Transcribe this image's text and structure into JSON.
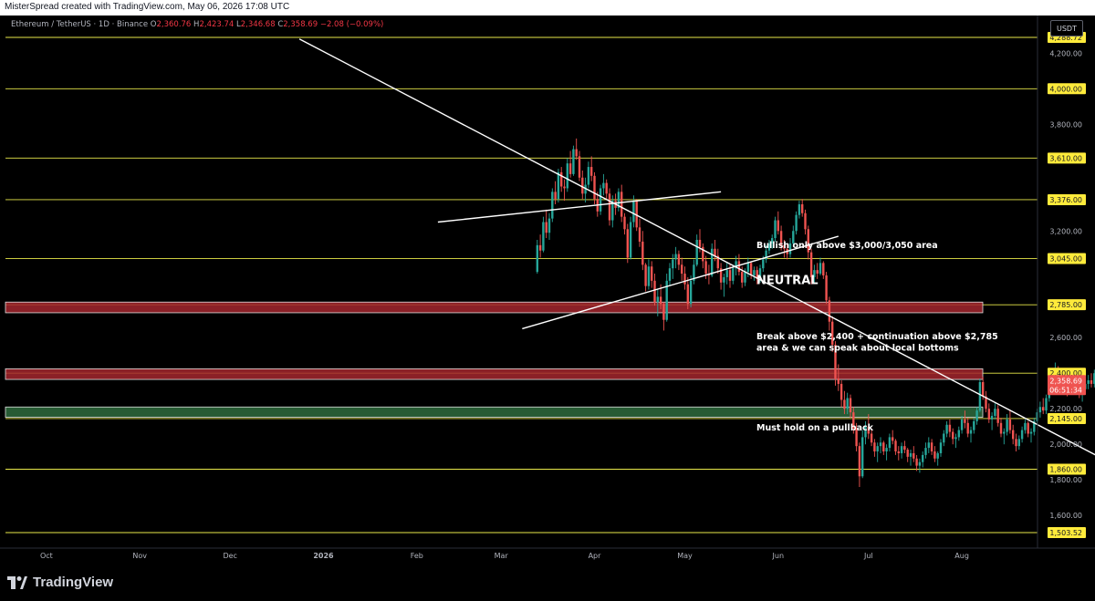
{
  "header": {
    "attribution": "MisterSpread created with TradingView.com, May 06, 2026 17:08 UTC"
  },
  "legend": {
    "symbol": "Ethereum / TetherUS · 1D · Binance",
    "open_label": "O",
    "open": "2,360.76",
    "high_label": "H",
    "high": "2,423.74",
    "low_label": "L",
    "low": "2,346.68",
    "close_label": "C",
    "close": "2,358.69",
    "change": "−2.08 (−0.09%)"
  },
  "currency_button": "USDT",
  "footer": {
    "brand": "TradingView"
  },
  "colors": {
    "background": "#000000",
    "level_line": "#e8e84a",
    "up_candle": "#26a69a",
    "down_candle": "#ef5350",
    "resistance_zone": "#a3262e",
    "support_zone": "#2e6b3d",
    "trendline": "#ffffff",
    "label_bg": "#ffeb3b",
    "current_price_bg": "#ef5350"
  },
  "chart_data": {
    "type": "candlestick",
    "symbol": "ETHUSDT",
    "timeframe": "1D",
    "y_range": [
      1470,
      4310
    ],
    "x_tick_labels": [
      "Oct",
      "Nov",
      "Dec",
      "2026",
      "Feb",
      "Mar",
      "Apr",
      "May",
      "Jun",
      "Jul",
      "Aug"
    ],
    "y_tick_labels": [
      "4,200.00",
      "3,800.00",
      "3,200.00",
      "2,600.00",
      "2,200.00",
      "2,000.00",
      "1,800.00",
      "1,600.00"
    ],
    "y_tick_values": [
      4200,
      3800,
      3200,
      2600,
      2200,
      2000,
      1800,
      1600
    ],
    "levels": [
      {
        "value": 4288.72,
        "label": "4,288.72"
      },
      {
        "value": 4000,
        "label": "4,000.00"
      },
      {
        "value": 3610,
        "label": "3,610.00"
      },
      {
        "value": 3376,
        "label": "3,376.00"
      },
      {
        "value": 3045,
        "label": "3,045.00"
      },
      {
        "value": 2785,
        "label": "2,785.00"
      },
      {
        "value": 2400,
        "label": "2,400.00"
      },
      {
        "value": 2145,
        "label": "2,145.00"
      },
      {
        "value": 1860,
        "label": "1,860.00"
      },
      {
        "value": 1503.52,
        "label": "1,503.52"
      }
    ],
    "current_price": {
      "value": 2358.69,
      "label": "2,358.69",
      "countdown": "06:51:34"
    },
    "zones": [
      {
        "name": "resistance-zone-2785",
        "low": 2740,
        "high": 2800,
        "kind": "resistance"
      },
      {
        "name": "resistance-zone-2400",
        "low": 2365,
        "high": 2425,
        "kind": "resistance"
      },
      {
        "name": "support-zone-2145",
        "low": 2152,
        "high": 2210,
        "kind": "support"
      }
    ],
    "annotations": [
      {
        "text": "Bullish only above $3,000/3,050 area",
        "price": 3105
      },
      {
        "text": "NEUTRAL",
        "price": 2900
      },
      {
        "text": "Break above $2,400 + continuation above $2,785",
        "price": 2590
      },
      {
        "text": "area & we can speak about local bottoms",
        "price": 2528
      },
      {
        "text": "Must hold on a pullback",
        "price": 2078
      }
    ],
    "trendlines": [
      {
        "name": "main-downtrend-line",
        "from": {
          "day": 97,
          "price": 4280
        },
        "to": {
          "day": 371,
          "price": 1855
        }
      },
      {
        "name": "wedge-upper-line",
        "from": {
          "day": 143,
          "price": 3250
        },
        "to": {
          "day": 237,
          "price": 3420
        }
      },
      {
        "name": "wedge-lower-line",
        "from": {
          "day": 171,
          "price": 2650
        },
        "to": {
          "day": 276,
          "price": 3170
        }
      }
    ],
    "candles": [
      [
        2970,
        3150,
        2960,
        3120
      ],
      [
        3120,
        3180,
        3050,
        3090
      ],
      [
        3090,
        3280,
        3080,
        3250
      ],
      [
        3250,
        3320,
        3160,
        3190
      ],
      [
        3190,
        3300,
        3150,
        3270
      ],
      [
        3270,
        3440,
        3250,
        3420
      ],
      [
        3420,
        3480,
        3350,
        3380
      ],
      [
        3380,
        3550,
        3360,
        3530
      ],
      [
        3530,
        3560,
        3420,
        3450
      ],
      [
        3450,
        3490,
        3370,
        3440
      ],
      [
        3440,
        3610,
        3420,
        3580
      ],
      [
        3580,
        3650,
        3500,
        3520
      ],
      [
        3520,
        3680,
        3510,
        3660
      ],
      [
        3660,
        3720,
        3600,
        3620
      ],
      [
        3620,
        3650,
        3480,
        3500
      ],
      [
        3500,
        3540,
        3380,
        3410
      ],
      [
        3410,
        3500,
        3360,
        3460
      ],
      [
        3460,
        3590,
        3440,
        3560
      ],
      [
        3560,
        3620,
        3480,
        3510
      ],
      [
        3510,
        3530,
        3350,
        3380
      ],
      [
        3380,
        3420,
        3280,
        3310
      ],
      [
        3310,
        3460,
        3290,
        3440
      ],
      [
        3440,
        3520,
        3400,
        3470
      ],
      [
        3470,
        3490,
        3380,
        3410
      ],
      [
        3410,
        3440,
        3230,
        3260
      ],
      [
        3260,
        3400,
        3220,
        3370
      ],
      [
        3370,
        3410,
        3290,
        3330
      ],
      [
        3330,
        3440,
        3310,
        3420
      ],
      [
        3420,
        3460,
        3250,
        3280
      ],
      [
        3280,
        3300,
        3180,
        3210
      ],
      [
        3210,
        3240,
        3020,
        3050
      ],
      [
        3050,
        3280,
        3040,
        3250
      ],
      [
        3250,
        3400,
        3220,
        3370
      ],
      [
        3370,
        3380,
        3200,
        3220
      ],
      [
        3220,
        3270,
        3110,
        3140
      ],
      [
        3140,
        3200,
        2980,
        3010
      ],
      [
        3010,
        3020,
        2860,
        2890
      ],
      [
        2890,
        3040,
        2870,
        3000
      ],
      [
        3000,
        3030,
        2880,
        2920
      ],
      [
        2920,
        2960,
        2780,
        2800
      ],
      [
        2800,
        2870,
        2720,
        2830
      ],
      [
        2830,
        2900,
        2760,
        2790
      ],
      [
        2790,
        2800,
        2640,
        2700
      ],
      [
        2700,
        2960,
        2690,
        2920
      ],
      [
        2920,
        3020,
        2890,
        2990
      ],
      [
        2990,
        3070,
        2930,
        3040
      ],
      [
        3040,
        3110,
        2990,
        3070
      ],
      [
        3070,
        3090,
        2980,
        3010
      ],
      [
        3010,
        3050,
        2920,
        2960
      ],
      [
        2960,
        3000,
        2870,
        2900
      ],
      [
        2900,
        2940,
        2760,
        2790
      ],
      [
        2790,
        2950,
        2770,
        2920
      ],
      [
        2920,
        3040,
        2900,
        3010
      ],
      [
        3010,
        3180,
        3000,
        3150
      ],
      [
        3150,
        3210,
        3080,
        3110
      ],
      [
        3110,
        3130,
        2990,
        3030
      ],
      [
        3030,
        3060,
        2930,
        2960
      ],
      [
        2960,
        3010,
        2900,
        2950
      ],
      [
        2950,
        3130,
        2940,
        3100
      ],
      [
        3100,
        3150,
        3030,
        3060
      ],
      [
        3060,
        3100,
        2960,
        2990
      ],
      [
        2990,
        3020,
        2870,
        2910
      ],
      [
        2910,
        2960,
        2830,
        2940
      ],
      [
        2940,
        3020,
        2900,
        2980
      ],
      [
        2980,
        3010,
        2880,
        2920
      ],
      [
        2920,
        3010,
        2900,
        2990
      ],
      [
        2990,
        3060,
        2950,
        3030
      ],
      [
        3030,
        3070,
        2950,
        2970
      ],
      [
        2970,
        3000,
        2880,
        2910
      ],
      [
        2910,
        2990,
        2890,
        2970
      ],
      [
        2970,
        3050,
        2940,
        3020
      ],
      [
        3020,
        3030,
        2930,
        2950
      ],
      [
        2950,
        3000,
        2920,
        2980
      ],
      [
        2980,
        3000,
        2900,
        2930
      ],
      [
        2930,
        3010,
        2910,
        2990
      ],
      [
        2990,
        3060,
        2970,
        3040
      ],
      [
        3040,
        3120,
        3020,
        3090
      ],
      [
        3090,
        3150,
        3070,
        3130
      ],
      [
        3130,
        3180,
        3100,
        3160
      ],
      [
        3160,
        3280,
        3140,
        3260
      ],
      [
        3260,
        3310,
        3180,
        3200
      ],
      [
        3200,
        3230,
        3090,
        3120
      ],
      [
        3120,
        3150,
        3050,
        3100
      ],
      [
        3100,
        3130,
        3040,
        3070
      ],
      [
        3070,
        3160,
        3050,
        3130
      ],
      [
        3130,
        3230,
        3110,
        3200
      ],
      [
        3200,
        3310,
        3180,
        3290
      ],
      [
        3290,
        3370,
        3270,
        3350
      ],
      [
        3350,
        3380,
        3280,
        3300
      ],
      [
        3300,
        3320,
        3180,
        3210
      ],
      [
        3210,
        3230,
        3040,
        3080
      ],
      [
        3080,
        3100,
        2900,
        2940
      ],
      [
        2940,
        3010,
        2910,
        2980
      ],
      [
        2980,
        3020,
        2930,
        2960
      ],
      [
        2960,
        3050,
        2950,
        3020
      ],
      [
        3020,
        3030,
        2930,
        2950
      ],
      [
        2950,
        2970,
        2790,
        2810
      ],
      [
        2810,
        2830,
        2640,
        2690
      ],
      [
        2690,
        2720,
        2520,
        2560
      ],
      [
        2560,
        2580,
        2330,
        2370
      ],
      [
        2370,
        2450,
        2300,
        2340
      ],
      [
        2340,
        2360,
        2210,
        2250
      ],
      [
        2250,
        2300,
        2170,
        2200
      ],
      [
        2200,
        2290,
        2170,
        2260
      ],
      [
        2260,
        2280,
        2150,
        2180
      ],
      [
        2180,
        2210,
        2060,
        2090
      ],
      [
        2090,
        2120,
        1960,
        1990
      ],
      [
        1990,
        2010,
        1760,
        1820
      ],
      [
        1820,
        2080,
        1810,
        2040
      ],
      [
        2040,
        2130,
        2000,
        2100
      ],
      [
        2100,
        2170,
        2030,
        2060
      ],
      [
        2060,
        2090,
        1990,
        2010
      ],
      [
        2010,
        2030,
        1930,
        1960
      ],
      [
        1960,
        2010,
        1900,
        1990
      ],
      [
        1990,
        2040,
        1950,
        2010
      ],
      [
        2010,
        2020,
        1940,
        1960
      ],
      [
        1960,
        2000,
        1910,
        1980
      ],
      [
        1980,
        2060,
        1960,
        2040
      ],
      [
        2040,
        2080,
        2000,
        2020
      ],
      [
        2020,
        2030,
        1940,
        1960
      ],
      [
        1960,
        1990,
        1910,
        1950
      ],
      [
        1950,
        2010,
        1920,
        1990
      ],
      [
        1990,
        2020,
        1950,
        1970
      ],
      [
        1970,
        1980,
        1900,
        1930
      ],
      [
        1930,
        1970,
        1880,
        1950
      ],
      [
        1950,
        1990,
        1900,
        1920
      ],
      [
        1920,
        1940,
        1850,
        1880
      ],
      [
        1880,
        1920,
        1840,
        1900
      ],
      [
        1900,
        1960,
        1870,
        1940
      ],
      [
        1940,
        2010,
        1920,
        1980
      ],
      [
        1980,
        2040,
        1950,
        2010
      ],
      [
        2010,
        2030,
        1940,
        1960
      ],
      [
        1960,
        1990,
        1900,
        1920
      ],
      [
        1920,
        1960,
        1880,
        1950
      ],
      [
        1950,
        2030,
        1930,
        2010
      ],
      [
        2010,
        2080,
        1990,
        2060
      ],
      [
        2060,
        2130,
        2040,
        2110
      ],
      [
        2110,
        2140,
        2040,
        2070
      ],
      [
        2070,
        2090,
        2000,
        2030
      ],
      [
        2030,
        2060,
        1980,
        2040
      ],
      [
        2040,
        2100,
        2020,
        2080
      ],
      [
        2080,
        2160,
        2060,
        2140
      ],
      [
        2140,
        2190,
        2090,
        2120
      ],
      [
        2120,
        2150,
        2040,
        2060
      ],
      [
        2060,
        2100,
        2010,
        2080
      ],
      [
        2080,
        2150,
        2060,
        2130
      ],
      [
        2130,
        2210,
        2110,
        2190
      ],
      [
        2190,
        2370,
        2180,
        2350
      ],
      [
        2350,
        2380,
        2250,
        2270
      ],
      [
        2270,
        2300,
        2180,
        2200
      ],
      [
        2200,
        2230,
        2120,
        2140
      ],
      [
        2140,
        2180,
        2080,
        2160
      ],
      [
        2160,
        2230,
        2140,
        2200
      ],
      [
        2200,
        2220,
        2100,
        2120
      ],
      [
        2120,
        2150,
        2040,
        2060
      ],
      [
        2060,
        2090,
        2000,
        2070
      ],
      [
        2070,
        2170,
        2050,
        2140
      ],
      [
        2140,
        2190,
        2060,
        2080
      ],
      [
        2080,
        2110,
        2000,
        2030
      ],
      [
        2030,
        2060,
        1960,
        1990
      ],
      [
        1990,
        2050,
        1970,
        2030
      ],
      [
        2030,
        2100,
        2010,
        2080
      ],
      [
        2080,
        2140,
        2060,
        2120
      ],
      [
        2120,
        2130,
        2040,
        2060
      ],
      [
        2060,
        2090,
        2010,
        2070
      ],
      [
        2070,
        2150,
        2050,
        2130
      ],
      [
        2130,
        2200,
        2110,
        2180
      ],
      [
        2180,
        2240,
        2150,
        2210
      ],
      [
        2210,
        2260,
        2170,
        2190
      ],
      [
        2190,
        2280,
        2170,
        2260
      ],
      [
        2260,
        2380,
        2240,
        2350
      ],
      [
        2350,
        2400,
        2300,
        2380
      ],
      [
        2380,
        2460,
        2350,
        2420
      ],
      [
        2420,
        2440,
        2330,
        2350
      ],
      [
        2350,
        2400,
        2310,
        2380
      ],
      [
        2380,
        2420,
        2320,
        2340
      ],
      [
        2340,
        2370,
        2270,
        2300
      ],
      [
        2300,
        2360,
        2280,
        2350
      ],
      [
        2350,
        2420,
        2330,
        2400
      ],
      [
        2400,
        2410,
        2310,
        2330
      ],
      [
        2330,
        2350,
        2260,
        2290
      ],
      [
        2290,
        2330,
        2240,
        2310
      ],
      [
        2310,
        2360,
        2290,
        2340
      ],
      [
        2340,
        2390,
        2310,
        2360
      ],
      [
        2360,
        2400,
        2320,
        2340
      ],
      [
        2340,
        2420,
        2320,
        2400
      ],
      [
        2400,
        2430,
        2340,
        2360
      ],
      [
        2360,
        2424,
        2347,
        2359
      ]
    ]
  }
}
